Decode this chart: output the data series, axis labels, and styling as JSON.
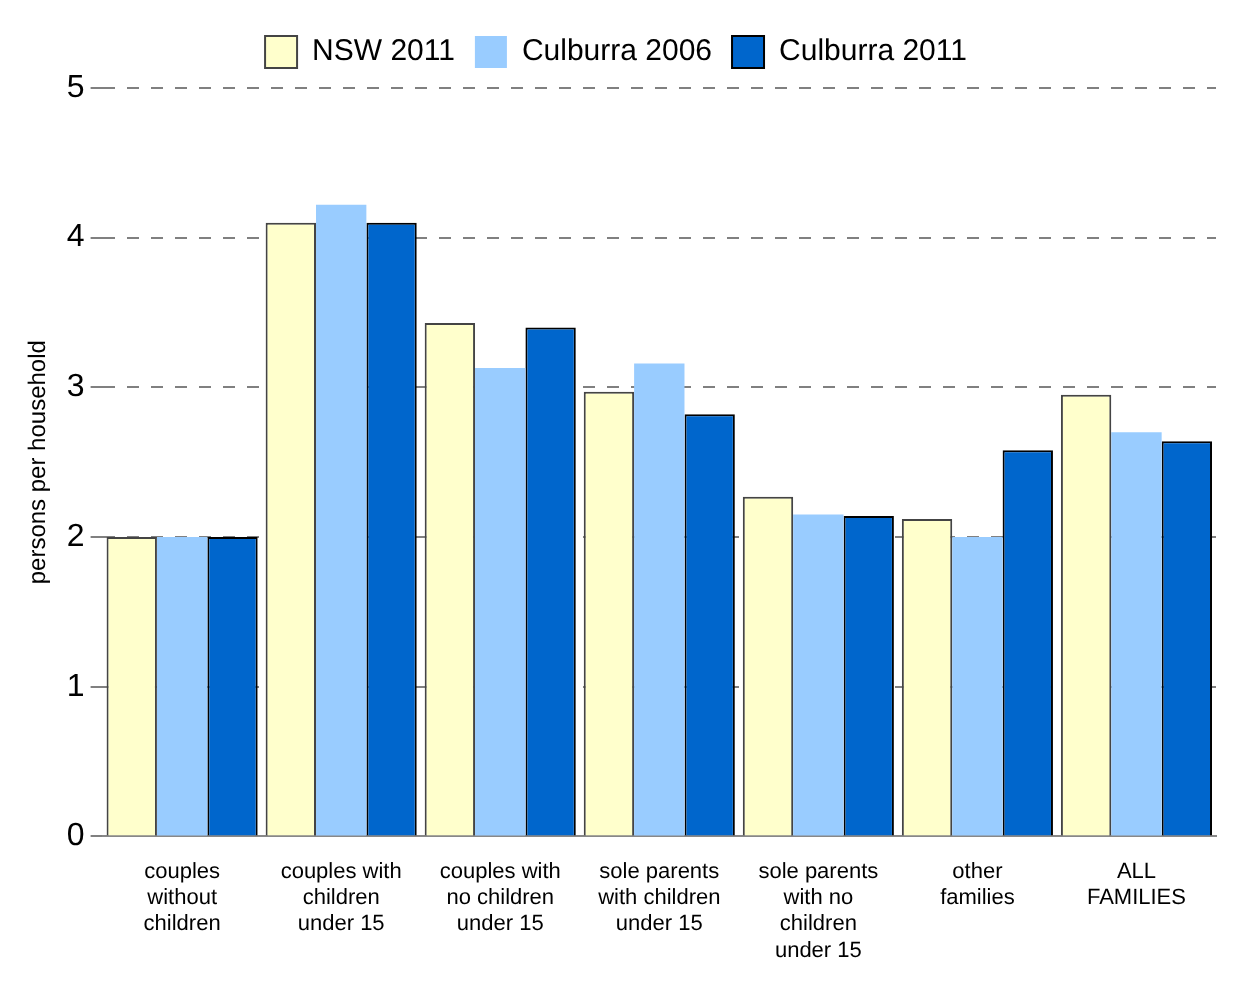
{
  "chart_data": {
    "type": "bar",
    "ylabel": "persons per household",
    "categories": [
      "couples\nwithout\nchildren",
      "couples with\nchildren\nunder 15",
      "couples with\nno children\nunder 15",
      "sole parents\nwith children\nunder 15",
      "sole parents\nwith no\nchildren\nunder 15",
      "other\nfamilies",
      "ALL\nFAMILIES"
    ],
    "series": [
      {
        "name": "NSW 2011",
        "color": "#ffffcc",
        "values": [
          2.0,
          4.1,
          3.43,
          2.97,
          2.27,
          2.12,
          2.95
        ]
      },
      {
        "name": "Culburra 2006",
        "color": "#99ccff",
        "values": [
          2.0,
          4.22,
          3.13,
          3.16,
          2.15,
          2.0,
          2.7
        ]
      },
      {
        "name": "Culburra 2011",
        "color": "#0066cc",
        "values": [
          2.0,
          4.1,
          3.4,
          2.82,
          2.14,
          2.58,
          2.64
        ]
      }
    ],
    "ylim": [
      0,
      5
    ],
    "yticks": [
      0,
      1,
      2,
      3,
      4,
      5
    ],
    "grid": "y",
    "legend": "top"
  }
}
